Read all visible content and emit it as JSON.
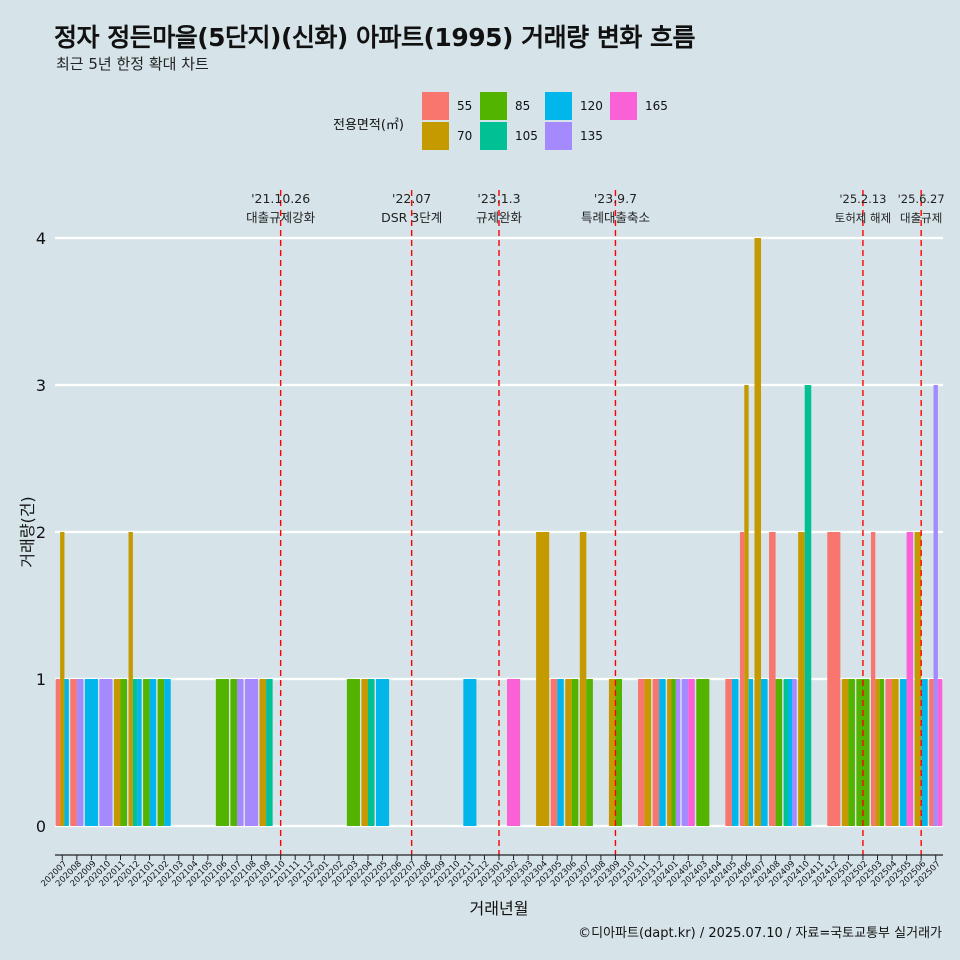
{
  "title": "정자 정든마을(5단지)(신화) 아파트(1995) 거래량 변화 흐름",
  "subtitle": "최근 5년 한정 확대 차트",
  "caption": "©디아파트(dapt.kr) / 2025.07.10 / 자료=국토교통부 실거래가",
  "legend": {
    "title": "전용면적(㎡)",
    "items": [
      {
        "label": "55",
        "color": "#F8766D"
      },
      {
        "label": "70",
        "color": "#C49A00"
      },
      {
        "label": "85",
        "color": "#53B400"
      },
      {
        "label": "105",
        "color": "#00C094"
      },
      {
        "label": "120",
        "color": "#00B6EB"
      },
      {
        "label": "135",
        "color": "#A58AFF"
      },
      {
        "label": "165",
        "color": "#FB61D7"
      }
    ]
  },
  "chart_data": {
    "type": "bar",
    "stacking": "dodge",
    "xlabel": "거래년월",
    "ylabel": "거래량(건)",
    "ylim": [
      0,
      4
    ],
    "yticks": [
      0,
      1,
      2,
      3,
      4
    ],
    "grid": "horizontal",
    "categories": [
      "202007",
      "202008",
      "202009",
      "202010",
      "202011",
      "202012",
      "202101",
      "202102",
      "202103",
      "202104",
      "202105",
      "202106",
      "202107",
      "202108",
      "202109",
      "202110",
      "202111",
      "202112",
      "202201",
      "202202",
      "202203",
      "202204",
      "202205",
      "202206",
      "202207",
      "202208",
      "202209",
      "202210",
      "202211",
      "202212",
      "202301",
      "202302",
      "202303",
      "202304",
      "202305",
      "202306",
      "202307",
      "202308",
      "202309",
      "202310",
      "202311",
      "202312",
      "202401",
      "202402",
      "202403",
      "202404",
      "202405",
      "202406",
      "202407",
      "202408",
      "202409",
      "202410",
      "202411",
      "202412",
      "202501",
      "202502",
      "202503",
      "202504",
      "202505",
      "202506",
      "202507"
    ],
    "series": [
      {
        "name": "55",
        "color": "#F8766D",
        "values": [
          1,
          1,
          0,
          0,
          0,
          0,
          0,
          0,
          0,
          0,
          0,
          0,
          0,
          0,
          0,
          0,
          0,
          0,
          0,
          0,
          0,
          0,
          0,
          0,
          0,
          0,
          0,
          0,
          0,
          0,
          0,
          0,
          0,
          0,
          1,
          0,
          0,
          0,
          0,
          0,
          1,
          1,
          0,
          0,
          0,
          0,
          1,
          2,
          0,
          2,
          0,
          0,
          0,
          2,
          0,
          0,
          2,
          1,
          0,
          0,
          1
        ]
      },
      {
        "name": "70",
        "color": "#C49A00",
        "values": [
          2,
          0,
          0,
          0,
          1,
          2,
          0,
          0,
          0,
          0,
          0,
          0,
          0,
          0,
          1,
          0,
          0,
          0,
          0,
          0,
          0,
          1,
          0,
          0,
          0,
          0,
          0,
          0,
          0,
          0,
          0,
          0,
          0,
          2,
          0,
          1,
          2,
          0,
          1,
          0,
          1,
          0,
          1,
          0,
          0,
          0,
          0,
          3,
          4,
          0,
          0,
          2,
          0,
          0,
          1,
          0,
          1,
          1,
          0,
          2,
          0
        ]
      },
      {
        "name": "85",
        "color": "#53B400",
        "values": [
          0,
          0,
          0,
          0,
          1,
          0,
          1,
          1,
          0,
          0,
          0,
          1,
          1,
          0,
          0,
          0,
          0,
          0,
          0,
          0,
          1,
          0,
          0,
          0,
          0,
          0,
          0,
          0,
          0,
          0,
          0,
          0,
          0,
          0,
          0,
          1,
          1,
          0,
          1,
          0,
          0,
          0,
          1,
          0,
          1,
          0,
          0,
          0,
          0,
          1,
          0,
          0,
          0,
          0,
          1,
          1,
          1,
          0,
          0,
          0,
          0
        ]
      },
      {
        "name": "105",
        "color": "#00C094",
        "values": [
          0,
          0,
          0,
          0,
          0,
          1,
          0,
          0,
          0,
          0,
          0,
          0,
          0,
          0,
          1,
          0,
          0,
          0,
          0,
          0,
          0,
          1,
          0,
          0,
          0,
          0,
          0,
          0,
          0,
          0,
          0,
          0,
          0,
          0,
          0,
          0,
          0,
          0,
          0,
          0,
          0,
          0,
          0,
          0,
          0,
          0,
          0,
          0,
          0,
          0,
          1,
          3,
          0,
          0,
          0,
          0,
          0,
          0,
          0,
          0,
          0
        ]
      },
      {
        "name": "120",
        "color": "#00B6EB",
        "values": [
          1,
          0,
          1,
          0,
          0,
          1,
          1,
          1,
          0,
          0,
          0,
          0,
          0,
          0,
          0,
          0,
          0,
          0,
          0,
          0,
          0,
          0,
          1,
          0,
          0,
          0,
          0,
          0,
          1,
          0,
          0,
          0,
          0,
          0,
          1,
          0,
          0,
          0,
          0,
          0,
          0,
          1,
          0,
          0,
          0,
          0,
          1,
          1,
          1,
          0,
          1,
          0,
          0,
          0,
          0,
          0,
          0,
          0,
          1,
          1,
          0
        ]
      },
      {
        "name": "135",
        "color": "#A58AFF",
        "values": [
          0,
          1,
          0,
          1,
          0,
          0,
          0,
          0,
          0,
          0,
          0,
          0,
          1,
          1,
          0,
          0,
          0,
          0,
          0,
          0,
          0,
          0,
          0,
          0,
          0,
          0,
          0,
          0,
          0,
          0,
          0,
          0,
          0,
          0,
          0,
          0,
          0,
          0,
          0,
          0,
          0,
          0,
          1,
          1,
          0,
          0,
          0,
          0,
          0,
          0,
          1,
          0,
          0,
          0,
          0,
          0,
          0,
          0,
          0,
          0,
          3
        ]
      },
      {
        "name": "165",
        "color": "#FB61D7",
        "values": [
          0,
          0,
          0,
          0,
          0,
          0,
          0,
          0,
          0,
          0,
          0,
          0,
          0,
          0,
          0,
          0,
          0,
          0,
          0,
          0,
          0,
          0,
          0,
          0,
          0,
          0,
          0,
          0,
          0,
          0,
          0,
          1,
          0,
          0,
          0,
          0,
          0,
          0,
          0,
          0,
          0,
          0,
          0,
          1,
          0,
          0,
          0,
          0,
          0,
          0,
          0,
          0,
          0,
          0,
          0,
          0,
          0,
          0,
          2,
          0,
          1
        ]
      }
    ],
    "annotations": [
      {
        "x": "202110",
        "date": "'21.10.26",
        "text": "대출규제강화",
        "color": "#ff0000"
      },
      {
        "x": "202207",
        "date": "'22.07",
        "text": "DSR 3단계",
        "color": "#ff0000"
      },
      {
        "x": "202301",
        "date": "'23.1.3",
        "text": "규제완화",
        "color": "#ff0000"
      },
      {
        "x": "202309",
        "date": "'23.9.7",
        "text": "특례대출축소",
        "color": "#ff0000"
      },
      {
        "x": "202502",
        "date": "'25.2.13",
        "text": "토허제 해제",
        "color": "#ff0000"
      },
      {
        "x": "202506",
        "date": "'25.6.27",
        "text": "대출규제",
        "color": "#ff0000"
      }
    ]
  }
}
